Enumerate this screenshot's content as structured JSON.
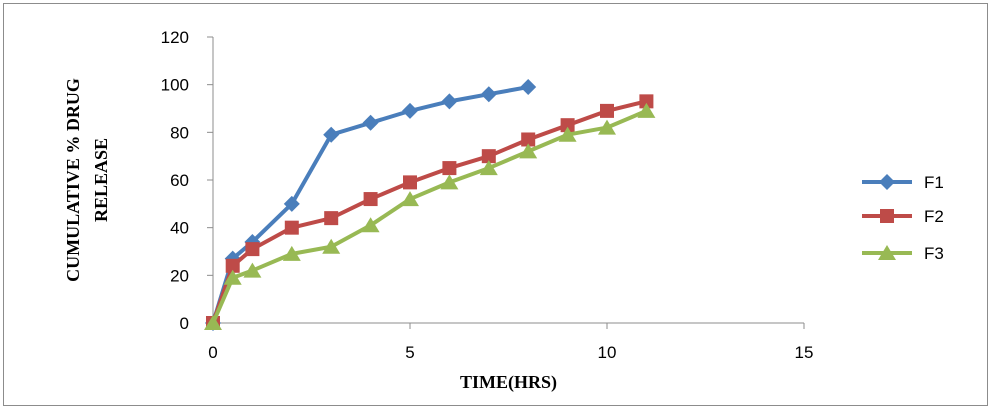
{
  "chart_data": {
    "type": "scatter",
    "title": "",
    "xlabel": "TIME(HRS)",
    "ylabel_lines": [
      "CUMULATIVE % DRUG",
      "RELEASE"
    ],
    "xlim": [
      0,
      15
    ],
    "ylim": [
      0,
      120
    ],
    "xticks": [
      0,
      5,
      10,
      15
    ],
    "yticks": [
      0,
      20,
      40,
      60,
      80,
      100,
      120
    ],
    "grid": false,
    "legend_position": "right",
    "series": [
      {
        "name": "F1",
        "color": "#4a7ebb",
        "marker": "diamond",
        "x": [
          0,
          0.5,
          1,
          2,
          3,
          4,
          5,
          6,
          7,
          8
        ],
        "y": [
          0,
          27,
          34,
          50,
          79,
          84,
          89,
          93,
          96,
          99
        ]
      },
      {
        "name": "F2",
        "color": "#be4b48",
        "marker": "square",
        "x": [
          0,
          0.5,
          1,
          2,
          3,
          4,
          5,
          6,
          7,
          8,
          9,
          10,
          11
        ],
        "y": [
          0,
          24,
          31,
          40,
          44,
          52,
          59,
          65,
          70,
          77,
          83,
          89,
          93
        ]
      },
      {
        "name": "F3",
        "color": "#98b954",
        "marker": "triangle",
        "x": [
          0,
          0.5,
          1,
          2,
          3,
          4,
          5,
          6,
          7,
          8,
          9,
          10,
          11
        ],
        "y": [
          0,
          19,
          22,
          29,
          32,
          41,
          52,
          59,
          65,
          72,
          79,
          82,
          89
        ]
      }
    ]
  }
}
